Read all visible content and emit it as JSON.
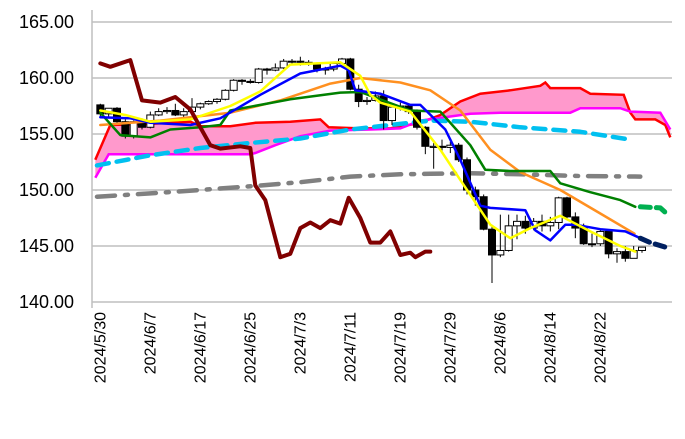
{
  "chart_data": {
    "type": "candlestick-ichimoku",
    "title": "",
    "xlabel": "",
    "ylabel": "",
    "ylim": [
      140,
      165
    ],
    "xlim": [
      -1,
      68.6
    ],
    "grid": true,
    "y_ticks": [
      "165.00",
      "160.00",
      "155.00",
      "150.00",
      "145.00",
      "140.00"
    ],
    "y_tick_values": [
      165,
      160,
      155,
      150,
      145,
      140
    ],
    "x_ticks": [
      {
        "index": 0,
        "label": "2024/5/30"
      },
      {
        "index": 6,
        "label": "2024/6/7"
      },
      {
        "index": 12,
        "label": "2024/6/17"
      },
      {
        "index": 18,
        "label": "2024/6/25"
      },
      {
        "index": 24,
        "label": "2024/7/3"
      },
      {
        "index": 30,
        "label": "2024/7/11"
      },
      {
        "index": 36,
        "label": "2024/7/19"
      },
      {
        "index": 42,
        "label": "2024/7/29"
      },
      {
        "index": 48,
        "label": "2024/8/6"
      },
      {
        "index": 54,
        "label": "2024/8/14"
      },
      {
        "index": 60,
        "label": "2024/8/22"
      }
    ],
    "candles_columns": [
      "open",
      "high",
      "low",
      "close"
    ],
    "candles": [
      [
        157.6,
        157.7,
        156.6,
        156.8
      ],
      [
        156.8,
        157.3,
        156.5,
        157.3
      ],
      [
        157.3,
        157.4,
        155.9,
        156.1
      ],
      [
        156.1,
        156.3,
        154.6,
        154.8
      ],
      [
        154.8,
        156.2,
        154.6,
        156.1
      ],
      [
        156.1,
        156.4,
        155.4,
        155.6
      ],
      [
        155.6,
        157.0,
        155.5,
        156.7
      ],
      [
        156.7,
        157.3,
        156.6,
        157.0
      ],
      [
        157.0,
        157.4,
        156.8,
        157.1
      ],
      [
        157.1,
        157.7,
        156.6,
        156.7
      ],
      [
        156.7,
        157.3,
        156.5,
        157.0
      ],
      [
        157.0,
        158.2,
        156.9,
        157.4
      ],
      [
        157.4,
        157.8,
        157.2,
        157.7
      ],
      [
        157.7,
        158.0,
        157.6,
        157.9
      ],
      [
        157.9,
        158.2,
        157.7,
        158.1
      ],
      [
        158.1,
        159.0,
        158.0,
        158.9
      ],
      [
        158.9,
        159.9,
        158.8,
        159.8
      ],
      [
        159.8,
        159.9,
        159.4,
        159.7
      ],
      [
        159.7,
        159.9,
        159.5,
        159.6
      ],
      [
        159.6,
        160.9,
        159.5,
        160.8
      ],
      [
        160.8,
        160.9,
        160.3,
        160.7
      ],
      [
        160.7,
        161.3,
        160.6,
        160.9
      ],
      [
        160.9,
        161.7,
        160.8,
        161.5
      ],
      [
        161.5,
        161.7,
        161.2,
        161.5
      ],
      [
        161.5,
        161.9,
        161.1,
        161.4
      ],
      [
        161.4,
        161.6,
        161.1,
        161.3
      ],
      [
        161.3,
        161.4,
        160.5,
        160.8
      ],
      [
        160.8,
        161.0,
        160.3,
        160.8
      ],
      [
        160.8,
        161.4,
        160.6,
        161.3
      ],
      [
        161.3,
        161.8,
        161.2,
        161.7
      ],
      [
        161.7,
        161.8,
        158.9,
        159.0
      ],
      [
        159.0,
        159.4,
        157.4,
        157.9
      ],
      [
        157.9,
        158.3,
        157.6,
        158.0
      ],
      [
        158.0,
        158.8,
        157.9,
        158.4
      ],
      [
        158.4,
        158.9,
        155.4,
        156.2
      ],
      [
        156.2,
        157.5,
        155.8,
        157.4
      ],
      [
        157.4,
        157.8,
        157.1,
        157.5
      ],
      [
        157.5,
        157.7,
        156.8,
        157.0
      ],
      [
        157.0,
        157.2,
        155.4,
        155.6
      ],
      [
        155.6,
        155.7,
        153.2,
        153.9
      ],
      [
        153.8,
        154.2,
        151.9,
        153.9
      ],
      [
        153.9,
        154.5,
        153.4,
        153.8
      ],
      [
        153.8,
        154.3,
        153.3,
        154.0
      ],
      [
        154.0,
        154.2,
        152.5,
        152.7
      ],
      [
        152.7,
        152.9,
        149.6,
        150.0
      ],
      [
        150.0,
        150.3,
        148.6,
        149.4
      ],
      [
        149.4,
        149.6,
        146.4,
        146.5
      ],
      [
        146.5,
        146.9,
        141.7,
        144.2
      ],
      [
        144.2,
        147.8,
        144.0,
        144.6
      ],
      [
        144.6,
        147.8,
        144.5,
        146.8
      ],
      [
        146.8,
        147.8,
        145.6,
        147.2
      ],
      [
        147.2,
        147.7,
        146.1,
        146.6
      ],
      [
        146.6,
        147.5,
        146.4,
        147.2
      ],
      [
        147.2,
        147.8,
        146.3,
        146.8
      ],
      [
        146.8,
        147.6,
        146.3,
        147.1
      ],
      [
        147.1,
        149.4,
        146.5,
        149.3
      ],
      [
        149.3,
        149.4,
        147.4,
        147.6
      ],
      [
        147.6,
        148.0,
        145.7,
        146.6
      ],
      [
        146.6,
        147.0,
        145.1,
        145.2
      ],
      [
        145.2,
        146.1,
        144.9,
        145.2
      ],
      [
        145.2,
        146.4,
        145.0,
        146.3
      ],
      [
        146.3,
        146.4,
        143.9,
        144.3
      ],
      [
        144.3,
        144.8,
        143.5,
        144.5
      ],
      [
        144.5,
        145.0,
        143.6,
        143.9
      ],
      [
        143.9,
        145.0,
        143.9,
        144.6
      ],
      [
        144.6,
        144.9,
        144.4,
        144.9
      ]
    ],
    "cloud": {
      "fill_color": "#ff99cc",
      "span_a": {
        "color": "#ff0000",
        "points": [
          [
            -0.6,
            152.7
          ],
          [
            1.2,
            155.8
          ],
          [
            6,
            155.9
          ],
          [
            10.8,
            156.1
          ],
          [
            12,
            155.7
          ],
          [
            15.6,
            155.7
          ],
          [
            18.6,
            156.0
          ],
          [
            22.8,
            156.1
          ],
          [
            26.4,
            156.3
          ],
          [
            27.4,
            155.6
          ],
          [
            31.2,
            155.5
          ],
          [
            34.8,
            155.5
          ],
          [
            38.4,
            156.0
          ],
          [
            40.8,
            156.7
          ],
          [
            43.2,
            157.9
          ],
          [
            45.6,
            158.6
          ],
          [
            49.2,
            158.9
          ],
          [
            52.8,
            159.3
          ],
          [
            53.4,
            159.6
          ],
          [
            54,
            159.1
          ],
          [
            57.6,
            159.1
          ],
          [
            58.8,
            158.6
          ],
          [
            62.8,
            158.5
          ],
          [
            63.6,
            156.9
          ],
          [
            64.2,
            156.3
          ],
          [
            66.6,
            156.3
          ],
          [
            67.8,
            155.8
          ],
          [
            68.4,
            154.7
          ]
        ]
      },
      "span_b": {
        "color": "#ff00ff",
        "points": [
          [
            -0.6,
            151.1
          ],
          [
            1,
            153.2
          ],
          [
            18,
            153.2
          ],
          [
            18.6,
            153.3
          ],
          [
            21,
            154.0
          ],
          [
            24,
            154.8
          ],
          [
            27.6,
            155.3
          ],
          [
            32.4,
            155.4
          ],
          [
            36,
            155.5
          ],
          [
            38.4,
            156.2
          ],
          [
            44.4,
            156.8
          ],
          [
            48,
            156.9
          ],
          [
            56.4,
            156.9
          ],
          [
            57.6,
            157.3
          ],
          [
            62.4,
            157.3
          ],
          [
            63.6,
            157.0
          ],
          [
            67.2,
            156.9
          ],
          [
            68.4,
            155.4
          ]
        ]
      }
    },
    "series": [
      {
        "name": "gray-dashdot",
        "color": "#808080",
        "style": "dashdot",
        "points": [
          [
            -0.4,
            149.4
          ],
          [
            6,
            149.7
          ],
          [
            12,
            150.0
          ],
          [
            19.2,
            150.4
          ],
          [
            24,
            150.7
          ],
          [
            30,
            151.2
          ],
          [
            36,
            151.4
          ],
          [
            39.6,
            151.45
          ],
          [
            44.4,
            151.5
          ],
          [
            50.4,
            151.4
          ],
          [
            57.6,
            151.25
          ],
          [
            64.8,
            151.2
          ]
        ]
      },
      {
        "name": "cyan-dashed",
        "color": "#00c0f0",
        "style": "dashed",
        "points": [
          [
            -0.4,
            152.2
          ],
          [
            6,
            153.1
          ],
          [
            12,
            153.75
          ],
          [
            18,
            154.2
          ],
          [
            24,
            154.6
          ],
          [
            30,
            155.4
          ],
          [
            36,
            155.9
          ],
          [
            39.6,
            156.2
          ],
          [
            44.4,
            156.1
          ],
          [
            50.4,
            155.6
          ],
          [
            57.6,
            155.2
          ],
          [
            63.6,
            154.5
          ]
        ]
      },
      {
        "name": "orange",
        "color": "#ff9020",
        "style": "solid",
        "points": [
          [
            0,
            155.8
          ],
          [
            7.2,
            156.2
          ],
          [
            15.6,
            156.9
          ],
          [
            21.6,
            158.0
          ],
          [
            27.6,
            159.5
          ],
          [
            31.2,
            160.0
          ],
          [
            36,
            159.6
          ],
          [
            39.6,
            158.9
          ],
          [
            43.2,
            157.1
          ],
          [
            46.8,
            153.6
          ],
          [
            50.4,
            151.6
          ],
          [
            55.2,
            150.0
          ],
          [
            60,
            147.9
          ],
          [
            64.1,
            146.1
          ]
        ]
      },
      {
        "name": "green",
        "color": "#008000",
        "style": "solid",
        "points": [
          [
            0,
            156.9
          ],
          [
            2.4,
            154.9
          ],
          [
            6,
            154.7
          ],
          [
            8.4,
            155.4
          ],
          [
            12,
            155.6
          ],
          [
            14.4,
            155.8
          ],
          [
            15.6,
            157.1
          ],
          [
            22.8,
            158.1
          ],
          [
            28.8,
            158.7
          ],
          [
            31.2,
            158.75
          ],
          [
            37.2,
            157.1
          ],
          [
            40.8,
            157.0
          ],
          [
            44.4,
            154.0
          ],
          [
            46.2,
            151.8
          ],
          [
            49.2,
            151.7
          ],
          [
            54,
            151.7
          ],
          [
            55.2,
            150.6
          ],
          [
            58.8,
            149.8
          ],
          [
            62.4,
            149.1
          ],
          [
            64.2,
            148.5
          ]
        ]
      },
      {
        "name": "green-forward",
        "color": "#00b050",
        "style": "dashed-thick",
        "points": [
          [
            64.8,
            148.5
          ],
          [
            67.2,
            148.4
          ],
          [
            67.8,
            148.0
          ]
        ]
      },
      {
        "name": "blue",
        "color": "#0000ff",
        "style": "solid",
        "points": [
          [
            0,
            156.5
          ],
          [
            3.6,
            156.4
          ],
          [
            6,
            156.0
          ],
          [
            10.8,
            155.8
          ],
          [
            14.4,
            156.4
          ],
          [
            19.2,
            158.5
          ],
          [
            24,
            160.4
          ],
          [
            28.8,
            161.1
          ],
          [
            29.8,
            160.7
          ],
          [
            30.6,
            158.9
          ],
          [
            33.6,
            158.6
          ],
          [
            37.2,
            157.6
          ],
          [
            38.4,
            157.6
          ],
          [
            41.4,
            155.4
          ],
          [
            43.2,
            152.7
          ],
          [
            45.6,
            148.6
          ],
          [
            46.8,
            148.4
          ],
          [
            51,
            148.2
          ],
          [
            52.2,
            146.4
          ],
          [
            54,
            145.5
          ],
          [
            55.8,
            146.9
          ],
          [
            57,
            146.9
          ],
          [
            60,
            146.5
          ],
          [
            63,
            146.3
          ],
          [
            64.8,
            145.7
          ]
        ]
      },
      {
        "name": "blue-forward",
        "color": "#002060",
        "style": "dashed-thick",
        "points": [
          [
            64.8,
            145.7
          ],
          [
            66,
            145.3
          ],
          [
            67.8,
            144.9
          ]
        ]
      },
      {
        "name": "yellow",
        "color": "#ffff00",
        "style": "solid",
        "points": [
          [
            0,
            157.1
          ],
          [
            3,
            156.7
          ],
          [
            6,
            156.1
          ],
          [
            10.8,
            156.3
          ],
          [
            15.6,
            157.5
          ],
          [
            19.2,
            158.8
          ],
          [
            22.8,
            161.2
          ],
          [
            28.8,
            161.4
          ],
          [
            31.2,
            160.2
          ],
          [
            32.4,
            158.5
          ],
          [
            33.6,
            157.8
          ],
          [
            37.2,
            157.0
          ],
          [
            40.8,
            153.6
          ],
          [
            43.2,
            150.9
          ],
          [
            46.8,
            146.9
          ],
          [
            49.2,
            145.7
          ],
          [
            51.6,
            146.6
          ],
          [
            55.2,
            147.7
          ],
          [
            58.8,
            146.3
          ],
          [
            62.4,
            145.0
          ],
          [
            64.2,
            144.5
          ]
        ]
      },
      {
        "name": "chikou-darkred",
        "color": "#800000",
        "style": "solid",
        "points": [
          [
            0,
            161.3
          ],
          [
            1.2,
            161.0
          ],
          [
            3.6,
            161.6
          ],
          [
            5,
            158.0
          ],
          [
            7.2,
            157.8
          ],
          [
            9,
            158.3
          ],
          [
            10.8,
            157.2
          ],
          [
            13.2,
            154.0
          ],
          [
            14.4,
            153.7
          ],
          [
            16.8,
            153.9
          ],
          [
            18,
            153.75
          ],
          [
            18.6,
            150.4
          ],
          [
            19.8,
            149.1
          ],
          [
            21.6,
            144.0
          ],
          [
            22.8,
            144.3
          ],
          [
            24,
            146.6
          ],
          [
            25.2,
            147.1
          ],
          [
            26.4,
            146.6
          ],
          [
            27.6,
            147.3
          ],
          [
            28.8,
            147.0
          ],
          [
            29.8,
            149.3
          ],
          [
            31.2,
            147.5
          ],
          [
            32.4,
            145.3
          ],
          [
            33.6,
            145.3
          ],
          [
            34.8,
            146.3
          ],
          [
            36,
            144.2
          ],
          [
            37.2,
            144.4
          ],
          [
            37.8,
            144.0
          ],
          [
            39,
            144.5
          ],
          [
            39.6,
            144.5
          ]
        ]
      }
    ]
  }
}
